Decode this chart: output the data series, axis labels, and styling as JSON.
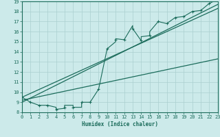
{
  "xlabel": "Humidex (Indice chaleur)",
  "xlim": [
    0,
    23
  ],
  "ylim": [
    8,
    19
  ],
  "xticks": [
    0,
    1,
    2,
    3,
    4,
    5,
    6,
    7,
    8,
    9,
    10,
    11,
    12,
    13,
    14,
    15,
    16,
    17,
    18,
    19,
    20,
    21,
    22,
    23
  ],
  "yticks": [
    8,
    9,
    10,
    11,
    12,
    13,
    14,
    15,
    16,
    17,
    18,
    19
  ],
  "bg_color": "#cceaea",
  "line_color": "#1a6b5a",
  "grid_color": "#aacfcf",
  "jagged_x": [
    0,
    1,
    2,
    3,
    4,
    4,
    5,
    5,
    6,
    6,
    7,
    7,
    8,
    9,
    10,
    11,
    11,
    12,
    13,
    13,
    14,
    14,
    15,
    15,
    16,
    17,
    18,
    19,
    20,
    21,
    22,
    23
  ],
  "jagged_y": [
    9.5,
    9.0,
    8.7,
    8.7,
    8.5,
    8.3,
    8.4,
    8.7,
    8.7,
    8.5,
    8.5,
    9.0,
    9.0,
    10.3,
    14.3,
    15.0,
    15.3,
    15.2,
    16.6,
    16.3,
    15.1,
    15.5,
    15.6,
    16.0,
    17.0,
    16.8,
    17.4,
    17.5,
    18.0,
    18.1,
    18.8,
    19.2
  ],
  "line1_x": [
    0,
    23
  ],
  "line1_y": [
    9.2,
    13.3
  ],
  "line2_x": [
    0,
    23
  ],
  "line2_y": [
    9.0,
    18.7
  ],
  "line3_x": [
    0,
    23
  ],
  "line3_y": [
    9.5,
    18.3
  ],
  "marker_x": [
    0,
    1,
    2,
    3,
    4,
    5,
    6,
    7,
    8,
    9,
    10,
    11,
    12,
    13,
    14,
    15,
    16,
    17,
    18,
    19,
    20,
    21,
    22,
    23
  ],
  "marker_y": [
    9.5,
    9.0,
    8.7,
    8.7,
    8.3,
    8.5,
    8.5,
    9.0,
    9.0,
    10.3,
    14.3,
    15.2,
    15.2,
    16.3,
    15.1,
    15.6,
    17.0,
    16.8,
    17.4,
    17.5,
    18.0,
    18.1,
    18.8,
    19.2
  ]
}
